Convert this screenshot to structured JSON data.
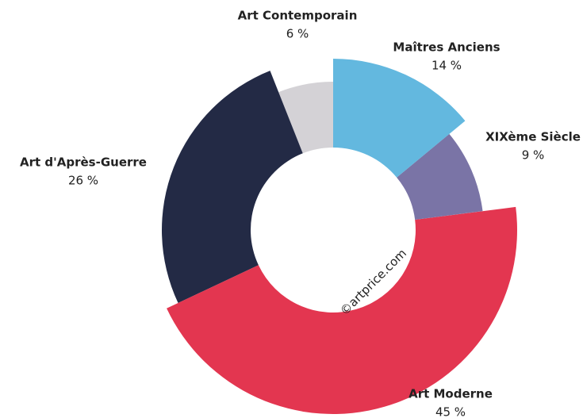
{
  "chart_data": {
    "type": "donut",
    "categories": [
      "Maîtres Anciens",
      "XIXème Siècle",
      "Art Moderne",
      "Art d'Après-Guerre",
      "Art Contemporain"
    ],
    "values": [
      14,
      9,
      45,
      26,
      6
    ],
    "value_labels": [
      "14 %",
      "9 %",
      "45 %",
      "26 %",
      "6 %"
    ],
    "colors": [
      "#63b8df",
      "#7a74a6",
      "#e33650",
      "#232a45",
      "#d4d2d6"
    ],
    "watermark": "©artprice.com"
  }
}
